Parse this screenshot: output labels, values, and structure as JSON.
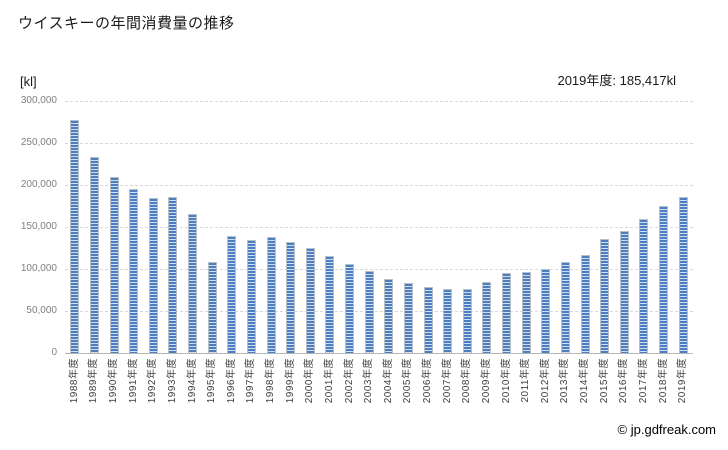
{
  "title": "ウイスキーの年間消費量の推移",
  "y_unit_label": "[kl]",
  "annotation": "2019年度: 185,417kl",
  "footer_credit": "© jp.gdfreak.com",
  "colors": {
    "bar_stripe_main": "#4d7ebf",
    "bar_stripe_light": "#cfdcee",
    "bar_border": "#b9bfc7",
    "gridline": "#d9d9d9",
    "axis_line": "#b7b7b7",
    "ytick_label": "#7f7f7f",
    "xtick_label": "#3f3f3f"
  },
  "chart_data": {
    "type": "bar",
    "title": "ウイスキーの年間消費量の推移",
    "ylabel": "[kl]",
    "unit": "kl",
    "grid": true,
    "legend_position": "none",
    "annotation": "2019年度: 185,417kl",
    "latest": {
      "year": "2019年度",
      "value": 185417
    },
    "ylim": [
      0,
      300000
    ],
    "yticks": [
      0,
      50000,
      100000,
      150000,
      200000,
      250000,
      300000
    ],
    "ytick_labels": [
      "0",
      "50,000",
      "100,000",
      "150,000",
      "200,000",
      "250,000",
      "300,000"
    ],
    "categories": [
      "1988年度",
      "1989年度",
      "1990年度",
      "1991年度",
      "1992年度",
      "1993年度",
      "1994年度",
      "1995年度",
      "1996年度",
      "1997年度",
      "1998年度",
      "1999年度",
      "2000年度",
      "2001年度",
      "2002年度",
      "2003年度",
      "2004年度",
      "2005年度",
      "2006年度",
      "2007年度",
      "2008年度",
      "2009年度",
      "2010年度",
      "2011年度",
      "2012年度",
      "2013年度",
      "2014年度",
      "2015年度",
      "2016年度",
      "2017年度",
      "2018年度",
      "2019年度"
    ],
    "values": [
      277000,
      233000,
      209000,
      195000,
      184000,
      186000,
      165000,
      108000,
      139000,
      134000,
      138000,
      132000,
      125000,
      116000,
      106000,
      98000,
      88000,
      83000,
      79000,
      76000,
      76000,
      84000,
      95000,
      97000,
      100000,
      108000,
      117000,
      136000,
      145000,
      160000,
      175000,
      185417
    ]
  }
}
